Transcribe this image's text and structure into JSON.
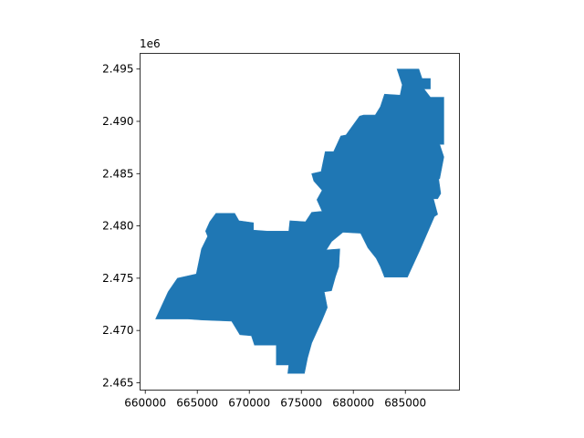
{
  "chart_data": {
    "type": "area",
    "title": "",
    "xlabel": "",
    "ylabel": "",
    "y_offset_label": "1e6",
    "xlim": [
      659500,
      690200
    ],
    "ylim": [
      2464300,
      2496500
    ],
    "x_ticks": [
      660000,
      665000,
      670000,
      675000,
      680000,
      685000
    ],
    "x_tick_labels": [
      "660000",
      "665000",
      "670000",
      "675000",
      "680000",
      "685000"
    ],
    "y_ticks": [
      2465000,
      2470000,
      2475000,
      2480000,
      2485000,
      2490000,
      2495000
    ],
    "y_tick_labels": [
      "2.465",
      "2.470",
      "2.475",
      "2.480",
      "2.485",
      "2.490",
      "2.495"
    ],
    "grid": false,
    "fill_color": "#1f77b4",
    "polygon": [
      [
        684200,
        2495000
      ],
      [
        686300,
        2495000
      ],
      [
        686600,
        2494100
      ],
      [
        687400,
        2494100
      ],
      [
        687400,
        2493100
      ],
      [
        686800,
        2493100
      ],
      [
        687400,
        2492300
      ],
      [
        688700,
        2492300
      ],
      [
        688700,
        2487800
      ],
      [
        688300,
        2487800
      ],
      [
        688700,
        2486600
      ],
      [
        688300,
        2484500
      ],
      [
        688200,
        2484500
      ],
      [
        688400,
        2483100
      ],
      [
        688100,
        2482600
      ],
      [
        687700,
        2482600
      ],
      [
        688100,
        2481100
      ],
      [
        687800,
        2480900
      ],
      [
        686400,
        2477700
      ],
      [
        685200,
        2475100
      ],
      [
        683000,
        2475100
      ],
      [
        682600,
        2476100
      ],
      [
        682200,
        2476900
      ],
      [
        681400,
        2477900
      ],
      [
        680700,
        2479300
      ],
      [
        679000,
        2479400
      ],
      [
        677900,
        2478500
      ],
      [
        677400,
        2477700
      ],
      [
        678700,
        2477800
      ],
      [
        678600,
        2476100
      ],
      [
        678300,
        2475200
      ],
      [
        677900,
        2473800
      ],
      [
        677200,
        2473700
      ],
      [
        677500,
        2472200
      ],
      [
        677000,
        2471000
      ],
      [
        676000,
        2468800
      ],
      [
        675600,
        2467400
      ],
      [
        675300,
        2465900
      ],
      [
        673700,
        2465900
      ],
      [
        673800,
        2466700
      ],
      [
        672600,
        2466700
      ],
      [
        672600,
        2468600
      ],
      [
        670500,
        2468600
      ],
      [
        670200,
        2469500
      ],
      [
        669100,
        2469600
      ],
      [
        668300,
        2470900
      ],
      [
        665500,
        2471000
      ],
      [
        664100,
        2471100
      ],
      [
        661000,
        2471100
      ],
      [
        662200,
        2473700
      ],
      [
        663100,
        2475000
      ],
      [
        664900,
        2475400
      ],
      [
        665400,
        2477800
      ],
      [
        666000,
        2479000
      ],
      [
        665800,
        2479500
      ],
      [
        666200,
        2480400
      ],
      [
        666800,
        2481200
      ],
      [
        668600,
        2481200
      ],
      [
        669000,
        2480500
      ],
      [
        670400,
        2480300
      ],
      [
        670400,
        2479600
      ],
      [
        671700,
        2479500
      ],
      [
        673800,
        2479500
      ],
      [
        673900,
        2480500
      ],
      [
        675400,
        2480400
      ],
      [
        676000,
        2481300
      ],
      [
        677000,
        2481400
      ],
      [
        676500,
        2482500
      ],
      [
        677000,
        2483400
      ],
      [
        676200,
        2484300
      ],
      [
        676000,
        2485000
      ],
      [
        676900,
        2485200
      ],
      [
        677300,
        2487100
      ],
      [
        678100,
        2487100
      ],
      [
        678800,
        2488600
      ],
      [
        679300,
        2488700
      ],
      [
        680600,
        2490500
      ],
      [
        681000,
        2490600
      ],
      [
        682100,
        2490600
      ],
      [
        682600,
        2491400
      ],
      [
        683000,
        2492600
      ],
      [
        684500,
        2492500
      ],
      [
        684700,
        2493500
      ]
    ]
  }
}
